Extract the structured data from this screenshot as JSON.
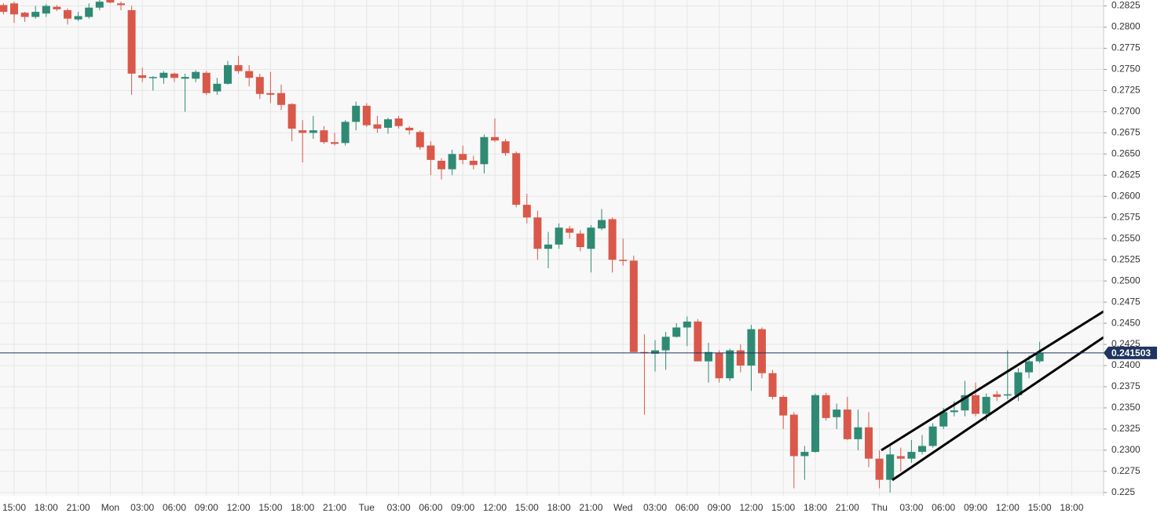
{
  "chart_data": {
    "type": "candlestick",
    "categories": [
      null,
      "15:00",
      null,
      null,
      "18:00",
      null,
      null,
      "21:00",
      null,
      null,
      "Mon",
      null,
      null,
      "03:00",
      null,
      null,
      "06:00",
      null,
      null,
      "09:00",
      null,
      null,
      "12:00",
      null,
      null,
      "15:00",
      null,
      null,
      "18:00",
      null,
      null,
      "21:00",
      null,
      null,
      "Tue",
      null,
      null,
      "03:00",
      null,
      null,
      "06:00",
      null,
      null,
      "09:00",
      null,
      null,
      "12:00",
      null,
      null,
      "15:00",
      null,
      null,
      "18:00",
      null,
      null,
      "21:00",
      null,
      null,
      "Wed",
      null,
      null,
      "03:00",
      null,
      null,
      "06:00",
      null,
      null,
      "09:00",
      null,
      null,
      "12:00",
      null,
      null,
      "15:00",
      null,
      null,
      "18:00",
      null,
      null,
      "21:00",
      null,
      null,
      "Thu",
      null,
      null,
      "03:00",
      null,
      null,
      "06:00",
      null,
      null,
      "09:00",
      null,
      null,
      "12:00",
      null,
      null,
      "15:00",
      null,
      null,
      "18:00"
    ],
    "open": [
      0.2826,
      0.2828,
      0.2817,
      0.2812,
      0.2816,
      0.2824,
      0.282,
      0.2809,
      0.2812,
      0.2823,
      0.2832,
      0.2828,
      0.282,
      0.2743,
      0.2741,
      0.274,
      0.2745,
      0.2739,
      0.2739,
      0.2746,
      0.2724,
      0.2733,
      0.2755,
      0.2748,
      0.2741,
      0.2722,
      0.2722,
      0.2709,
      0.2678,
      0.2675,
      0.2678,
      0.2664,
      0.2663,
      0.2688,
      0.2707,
      0.2685,
      0.2681,
      0.2692,
      0.2681,
      0.2676,
      0.266,
      0.2642,
      0.2632,
      0.265,
      0.2642,
      0.2638,
      0.267,
      0.2665,
      0.2651,
      0.259,
      0.2575,
      0.2538,
      0.2543,
      0.2562,
      0.2556,
      0.2538,
      0.2562,
      0.2573,
      0.2525,
      0.2524,
      0.2416,
      0.2414,
      0.2418,
      0.2434,
      0.2445,
      0.2452,
      0.2405,
      0.2415,
      0.2385,
      0.2418,
      0.24,
      0.2443,
      0.2391,
      0.2363,
      0.2342,
      0.2293,
      0.2298,
      0.2365,
      0.2339,
      0.2348,
      0.2313,
      0.2327,
      0.229,
      0.2265,
      0.2293,
      0.229,
      0.2298,
      0.2305,
      0.2328,
      0.2345,
      0.2347,
      0.2365,
      0.2343,
      0.2366,
      0.2365,
      0.2365,
      0.2392,
      0.2405,
      null,
      null,
      null
    ],
    "high": [
      0.2828,
      0.283,
      0.2818,
      0.2825,
      0.2827,
      0.2826,
      0.2822,
      0.2818,
      0.2828,
      0.2835,
      0.2835,
      0.283,
      0.2825,
      0.2752,
      0.2742,
      0.2748,
      0.2746,
      0.2745,
      0.2749,
      0.2748,
      0.274,
      0.276,
      0.2766,
      0.2755,
      0.2745,
      0.2747,
      0.2732,
      0.271,
      0.269,
      0.2695,
      0.2683,
      0.2675,
      0.269,
      0.2712,
      0.271,
      0.2695,
      0.2693,
      0.2695,
      0.2683,
      0.2678,
      0.2665,
      0.2645,
      0.2655,
      0.266,
      0.2648,
      0.2673,
      0.2692,
      0.2668,
      0.2653,
      0.2603,
      0.2583,
      0.2558,
      0.2568,
      0.2565,
      0.256,
      0.2566,
      0.2585,
      0.2575,
      0.255,
      0.253,
      0.2437,
      0.243,
      0.244,
      0.245,
      0.2458,
      0.2455,
      0.2427,
      0.2418,
      0.242,
      0.2425,
      0.2448,
      0.2445,
      0.2395,
      0.2365,
      0.2345,
      0.2305,
      0.2367,
      0.2368,
      0.2355,
      0.2363,
      0.2348,
      0.2345,
      0.23,
      0.2305,
      0.2303,
      0.2312,
      0.2318,
      0.2332,
      0.235,
      0.2358,
      0.2382,
      0.238,
      0.2367,
      0.237,
      0.2418,
      0.2397,
      0.2412,
      0.2428,
      null,
      null,
      null
    ],
    "low": [
      0.2815,
      0.2805,
      0.2806,
      0.281,
      0.2812,
      0.2819,
      0.2803,
      0.2807,
      0.281,
      0.282,
      0.2828,
      0.282,
      0.272,
      0.2735,
      0.2725,
      0.2733,
      0.2735,
      0.27,
      0.2735,
      0.272,
      0.272,
      0.2732,
      0.2745,
      0.273,
      0.2715,
      0.271,
      0.2702,
      0.2665,
      0.264,
      0.2668,
      0.2662,
      0.266,
      0.266,
      0.2678,
      0.2682,
      0.2675,
      0.2674,
      0.268,
      0.2673,
      0.2655,
      0.2625,
      0.262,
      0.2625,
      0.2638,
      0.2632,
      0.2627,
      0.2664,
      0.2648,
      0.2587,
      0.2568,
      0.2525,
      0.2515,
      0.2538,
      0.255,
      0.2535,
      0.251,
      0.256,
      0.251,
      0.2518,
      0.2416,
      0.2342,
      0.2393,
      0.2395,
      0.2433,
      0.2423,
      0.2405,
      0.238,
      0.238,
      0.2382,
      0.2392,
      0.237,
      0.2385,
      0.236,
      0.2325,
      0.2255,
      0.2265,
      0.2297,
      0.2335,
      0.2325,
      0.2312,
      0.23,
      0.228,
      0.2255,
      0.225,
      0.2275,
      0.2285,
      0.2295,
      0.2303,
      0.2325,
      0.234,
      0.234,
      0.234,
      0.2335,
      0.2358,
      0.236,
      0.2358,
      0.2385,
      0.2403,
      null,
      null,
      null
    ],
    "close": [
      0.2818,
      0.2815,
      0.2812,
      0.2818,
      0.2825,
      0.2821,
      0.281,
      0.2813,
      0.2823,
      0.283,
      0.2829,
      0.2826,
      0.2745,
      0.274,
      0.2741,
      0.2746,
      0.274,
      0.2741,
      0.2747,
      0.2722,
      0.2733,
      0.2755,
      0.2748,
      0.274,
      0.2721,
      0.272,
      0.2708,
      0.268,
      0.2675,
      0.2678,
      0.2664,
      0.2662,
      0.2688,
      0.2707,
      0.2684,
      0.268,
      0.2691,
      0.2683,
      0.2678,
      0.2658,
      0.2643,
      0.2632,
      0.265,
      0.2643,
      0.2637,
      0.267,
      0.2666,
      0.2651,
      0.259,
      0.2575,
      0.2538,
      0.2543,
      0.2563,
      0.2557,
      0.254,
      0.2563,
      0.2572,
      0.2525,
      0.2524,
      0.2416,
      0.2415,
      0.2418,
      0.2434,
      0.2445,
      0.2452,
      0.2405,
      0.2416,
      0.2385,
      0.2418,
      0.24,
      0.2443,
      0.2391,
      0.2363,
      0.2341,
      0.2293,
      0.2298,
      0.2365,
      0.2338,
      0.2348,
      0.2313,
      0.2327,
      0.229,
      0.2265,
      0.2295,
      0.229,
      0.2298,
      0.2305,
      0.2328,
      0.2345,
      0.2347,
      0.2365,
      0.2343,
      0.2363,
      0.2363,
      0.2366,
      0.2392,
      0.2405,
      0.2415,
      null,
      null,
      null
    ],
    "up_color": "#2f8a74",
    "down_color": "#d9584a",
    "ylim": [
      0.2248,
      0.2832
    ],
    "yticks": [
      0.225,
      {
        "value": 0.2275,
        "label": "0.2275"
      },
      {
        "value": 0.23,
        "label": "0.2300"
      },
      0.2325,
      {
        "value": 0.235,
        "label": "0.2350"
      },
      0.2375,
      {
        "value": 0.24,
        "label": "0.2400"
      },
      0.2425,
      {
        "value": 0.245,
        "label": "0.2450"
      },
      0.2475,
      {
        "value": 0.25,
        "label": "0.2500"
      },
      0.2525,
      {
        "value": 0.255,
        "label": "0.2550"
      },
      0.2575,
      {
        "value": 0.26,
        "label": "0.2600"
      },
      0.2625,
      {
        "value": 0.265,
        "label": "0.2650"
      },
      0.2675,
      {
        "value": 0.27,
        "label": "0.2700"
      },
      0.2725,
      {
        "value": 0.275,
        "label": "0.2750"
      },
      0.2775,
      {
        "value": 0.28,
        "label": "0.2800"
      },
      0.2825
    ],
    "last_price": {
      "value": 0.241503,
      "label": "0.241503"
    },
    "grid": true
  }
}
